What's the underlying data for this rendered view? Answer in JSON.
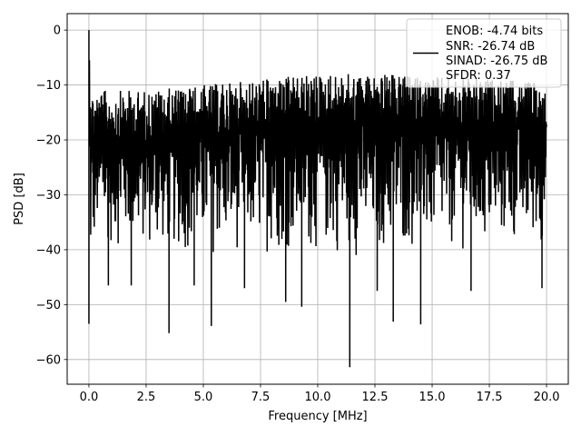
{
  "chart_data": {
    "type": "line",
    "title": "",
    "xlabel": "Frequency [MHz]",
    "ylabel": "PSD [dB]",
    "xlim": [
      -0.95,
      20.95
    ],
    "ylim": [
      -64.5,
      3.0
    ],
    "xticks": [
      0.0,
      2.5,
      5.0,
      7.5,
      10.0,
      12.5,
      15.0,
      17.5,
      20.0
    ],
    "xtick_labels": [
      "0.0",
      "2.5",
      "5.0",
      "7.5",
      "10.0",
      "12.5",
      "15.0",
      "17.5",
      "20.0"
    ],
    "yticks": [
      0,
      -10,
      -20,
      -30,
      -40,
      -50,
      -60
    ],
    "ytick_labels": [
      "0",
      "−10",
      "−20",
      "−30",
      "−40",
      "−50",
      "−60"
    ],
    "grid": true,
    "legend_position": "top-right",
    "legend_entries": [
      "ENOB: -4.74 bits",
      "SNR: -26.74 dB",
      "SINAD: -26.75 dB",
      "SFDR: 0.37"
    ],
    "series": [
      {
        "color": "#000000",
        "description": "dense noise floor spanning roughly -10 to -35 dB across 0-20 MHz with a DC spike near 0 dB",
        "x_range": [
          0.0,
          20.0
        ],
        "peak": {
          "x": 0.0,
          "y": 0.0
        },
        "upper_envelope": {
          "x": [
            0.0,
            0.1,
            2.5,
            5.0,
            7.5,
            10.0,
            12.5,
            15.0,
            17.5,
            20.0
          ],
          "y": [
            0.0,
            -11,
            -11,
            -10,
            -9,
            -8,
            -8,
            -8.5,
            -9,
            -9.5
          ]
        },
        "lower_envelope": {
          "x": [
            0.0,
            0.3,
            2.5,
            5.0,
            7.5,
            10.0,
            12.5,
            15.0,
            17.5,
            20.0
          ],
          "y": [
            -53.5,
            -40,
            -41,
            -42,
            -41,
            -42,
            -42,
            -41,
            -41,
            -40
          ]
        },
        "deep_dips": [
          {
            "x": 0.0,
            "y": -53.5
          },
          {
            "x": 0.85,
            "y": -46.5
          },
          {
            "x": 1.85,
            "y": -46.5
          },
          {
            "x": 3.5,
            "y": -55.2
          },
          {
            "x": 4.6,
            "y": -46.5
          },
          {
            "x": 5.35,
            "y": -53.9
          },
          {
            "x": 6.8,
            "y": -47.0
          },
          {
            "x": 8.6,
            "y": -49.5
          },
          {
            "x": 9.3,
            "y": -50.4
          },
          {
            "x": 11.4,
            "y": -61.4
          },
          {
            "x": 12.6,
            "y": -47.5
          },
          {
            "x": 13.3,
            "y": -53.1
          },
          {
            "x": 14.5,
            "y": -53.6
          },
          {
            "x": 16.7,
            "y": -47.5
          },
          {
            "x": 19.8,
            "y": -47.0
          }
        ]
      }
    ]
  }
}
